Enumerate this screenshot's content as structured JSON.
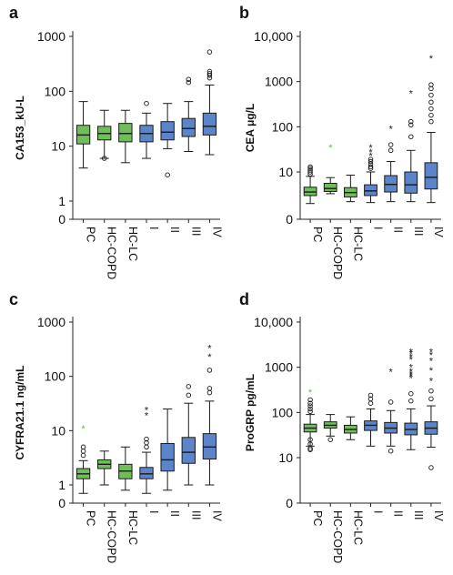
{
  "chart_data": [
    {
      "panel": "a",
      "type": "box",
      "ylabel": "CA153_kU-L",
      "yscale": "log",
      "categories": [
        "PC",
        "HC-COPD",
        "HC-LC",
        "I",
        "II",
        "III",
        "IV"
      ],
      "category_groups": [
        "green",
        "green",
        "green",
        "blue",
        "blue",
        "blue",
        "blue"
      ],
      "yticks": [
        0,
        1,
        10,
        100,
        1000
      ],
      "ytick_labels": [
        "0",
        "1",
        "10",
        "100",
        "1000"
      ],
      "boxes": [
        {
          "whisker_low": 4,
          "q1": 11,
          "median": 16,
          "q3": 24,
          "whisker_high": 65,
          "outliers": []
        },
        {
          "whisker_low": 6,
          "q1": 13,
          "median": 17,
          "q3": 23,
          "whisker_high": 45,
          "outliers": [
            6
          ]
        },
        {
          "whisker_low": 5,
          "q1": 12,
          "median": 17,
          "q3": 26,
          "whisker_high": 45,
          "outliers": []
        },
        {
          "whisker_low": 6,
          "q1": 12,
          "median": 17,
          "q3": 24,
          "whisker_high": 40,
          "outliers": [
            60
          ]
        },
        {
          "whisker_low": 9,
          "q1": 13,
          "median": 18,
          "q3": 28,
          "whisker_high": 60,
          "outliers": [
            3
          ]
        },
        {
          "whisker_low": 8,
          "q1": 15,
          "median": 21,
          "q3": 32,
          "whisker_high": 65,
          "outliers": [
            145,
            165
          ]
        },
        {
          "whisker_low": 7,
          "q1": 16,
          "median": 23,
          "q3": 40,
          "whisker_high": 130,
          "outliers": [
            175,
            195,
            210,
            230,
            520
          ]
        }
      ],
      "extremes": []
    },
    {
      "panel": "b",
      "type": "box",
      "ylabel": "CEA μg/L",
      "yscale": "log",
      "categories": [
        "PC",
        "HC-COPD",
        "HC-LC",
        "I",
        "II",
        "III",
        "IV"
      ],
      "category_groups": [
        "green",
        "green",
        "green",
        "blue",
        "blue",
        "blue",
        "blue"
      ],
      "yticks": [
        0,
        10,
        100,
        1000,
        10000
      ],
      "ytick_labels": [
        "0",
        "10",
        "100",
        "1000",
        "10,000"
      ],
      "boxes": [
        {
          "whisker_low": 2.0,
          "q1": 3.0,
          "median": 3.6,
          "q3": 4.6,
          "whisker_high": 8.0,
          "outliers": [
            9,
            10,
            11,
            12,
            13
          ]
        },
        {
          "whisker_low": 3.3,
          "q1": 3.7,
          "median": 4.3,
          "q3": 5.6,
          "whisker_high": 7.5,
          "outliers": []
        },
        {
          "whisker_low": 2.2,
          "q1": 2.8,
          "median": 3.5,
          "q3": 4.5,
          "whisker_high": 8.5,
          "outliers": []
        },
        {
          "whisker_low": 2.1,
          "q1": 3.0,
          "median": 3.8,
          "q3": 5.2,
          "whisker_high": 10,
          "outliers": [
            12,
            13,
            15,
            17,
            19
          ]
        },
        {
          "whisker_low": 2.2,
          "q1": 3.6,
          "median": 5.3,
          "q3": 8.3,
          "whisker_high": 17,
          "outliers": [
            30,
            40
          ]
        },
        {
          "whisker_low": 2.2,
          "q1": 3.4,
          "median": 5.2,
          "q3": 10,
          "whisker_high": 30,
          "outliers": [
            60,
            110,
            130
          ]
        },
        {
          "whisker_low": 2.1,
          "q1": 4.2,
          "median": 7.6,
          "q3": 16,
          "whisker_high": 75,
          "outliers": [
            130,
            180,
            250,
            350,
            500,
            700,
            850
          ]
        }
      ],
      "extremes": [
        {
          "category": "HC-COPD",
          "value": 35,
          "color": "green"
        },
        {
          "category": "I",
          "value": 23
        },
        {
          "category": "I",
          "value": 28
        },
        {
          "category": "I",
          "value": 35
        },
        {
          "category": "II",
          "value": 90
        },
        {
          "category": "III",
          "value": 550
        },
        {
          "category": "IV",
          "value": 3300
        }
      ]
    },
    {
      "panel": "c",
      "type": "box",
      "ylabel": "CYFRA21.1 ng/mL",
      "yscale": "log",
      "categories": [
        "PC",
        "HC-COPD",
        "HC-LC",
        "I",
        "II",
        "III",
        "IV"
      ],
      "category_groups": [
        "green",
        "green",
        "green",
        "blue",
        "blue",
        "blue",
        "blue"
      ],
      "yticks": [
        0,
        1,
        10,
        100,
        1000
      ],
      "ytick_labels": [
        "0",
        "1",
        "10",
        "100",
        "1000"
      ],
      "boxes": [
        {
          "whisker_low": 0.7,
          "q1": 1.3,
          "median": 1.6,
          "q3": 2.0,
          "whisker_high": 2.8,
          "outliers": [
            3.5,
            4.2,
            5
          ]
        },
        {
          "whisker_low": 1.0,
          "q1": 2.0,
          "median": 2.4,
          "q3": 2.9,
          "whisker_high": 4.2,
          "outliers": []
        },
        {
          "whisker_low": 0.8,
          "q1": 1.3,
          "median": 1.8,
          "q3": 2.4,
          "whisker_high": 5.0,
          "outliers": []
        },
        {
          "whisker_low": 0.7,
          "q1": 1.3,
          "median": 1.6,
          "q3": 2.1,
          "whisker_high": 4.0,
          "outliers": [
            5,
            6,
            7
          ]
        },
        {
          "whisker_low": 0.8,
          "q1": 1.8,
          "median": 2.9,
          "q3": 5.8,
          "whisker_high": 25,
          "outliers": []
        },
        {
          "whisker_low": 1.0,
          "q1": 2.5,
          "median": 4.0,
          "q3": 7.5,
          "whisker_high": 32,
          "outliers": [
            45,
            65
          ]
        },
        {
          "whisker_low": 1.0,
          "q1": 3.0,
          "median": 5.0,
          "q3": 8.8,
          "whisker_high": 35,
          "outliers": [
            50,
            60,
            130
          ]
        }
      ],
      "extremes": [
        {
          "category": "PC",
          "value": 11,
          "color": "green"
        },
        {
          "category": "I",
          "value": 19
        },
        {
          "category": "I",
          "value": 24
        },
        {
          "category": "IV",
          "value": 230
        },
        {
          "category": "IV",
          "value": 330
        }
      ]
    },
    {
      "panel": "d",
      "type": "box",
      "ylabel": "ProGRP pg/mL",
      "yscale": "log",
      "categories": [
        "PC",
        "HC-COPD",
        "HC-LC",
        "I",
        "II",
        "III",
        "IV"
      ],
      "category_groups": [
        "green",
        "green",
        "green",
        "blue",
        "blue",
        "blue",
        "blue"
      ],
      "yticks": [
        0,
        10,
        100,
        1000,
        10000
      ],
      "ytick_labels": [
        "0",
        "10",
        "100",
        "1000",
        "10,000"
      ],
      "boxes": [
        {
          "whisker_low": 18,
          "q1": 37,
          "median": 45,
          "q3": 55,
          "whisker_high": 90,
          "outliers": [
            15,
            16,
            20,
            25,
            105,
            120,
            140,
            160,
            190
          ]
        },
        {
          "whisker_low": 30,
          "q1": 45,
          "median": 52,
          "q3": 62,
          "whisker_high": 90,
          "outliers": [
            25
          ]
        },
        {
          "whisker_low": 25,
          "q1": 35,
          "median": 42,
          "q3": 52,
          "whisker_high": 80,
          "outliers": []
        },
        {
          "whisker_low": 18,
          "q1": 40,
          "median": 52,
          "q3": 65,
          "whisker_high": 120,
          "outliers": [
            160,
            200,
            240
          ]
        },
        {
          "whisker_low": 18,
          "q1": 35,
          "median": 45,
          "q3": 60,
          "whisker_high": 110,
          "outliers": [
            14,
            170
          ]
        },
        {
          "whisker_low": 15,
          "q1": 32,
          "median": 42,
          "q3": 58,
          "whisker_high": 120,
          "outliers": [
            180,
            260
          ]
        },
        {
          "whisker_low": 17,
          "q1": 33,
          "median": 45,
          "q3": 62,
          "whisker_high": 140,
          "outliers": [
            200,
            300,
            6
          ]
        }
      ],
      "extremes": [
        {
          "category": "PC",
          "value": 280,
          "color": "green"
        },
        {
          "category": "II",
          "value": 800
        },
        {
          "category": "III",
          "value": 580
        },
        {
          "category": "III",
          "value": 650
        },
        {
          "category": "III",
          "value": 720
        },
        {
          "category": "III",
          "value": 820
        },
        {
          "category": "III",
          "value": 1000
        },
        {
          "category": "III",
          "value": 1500
        },
        {
          "category": "III",
          "value": 1700
        },
        {
          "category": "III",
          "value": 2000
        },
        {
          "category": "III",
          "value": 2200
        },
        {
          "category": "IV",
          "value": 500
        },
        {
          "category": "IV",
          "value": 850
        },
        {
          "category": "IV",
          "value": 1400
        },
        {
          "category": "IV",
          "value": 1900
        },
        {
          "category": "IV",
          "value": 2200
        }
      ]
    }
  ],
  "colors": {
    "green": "#6fbf59",
    "blue": "#5b85c8",
    "green_star": "#5db84f",
    "outline": "#1a1a1a"
  }
}
